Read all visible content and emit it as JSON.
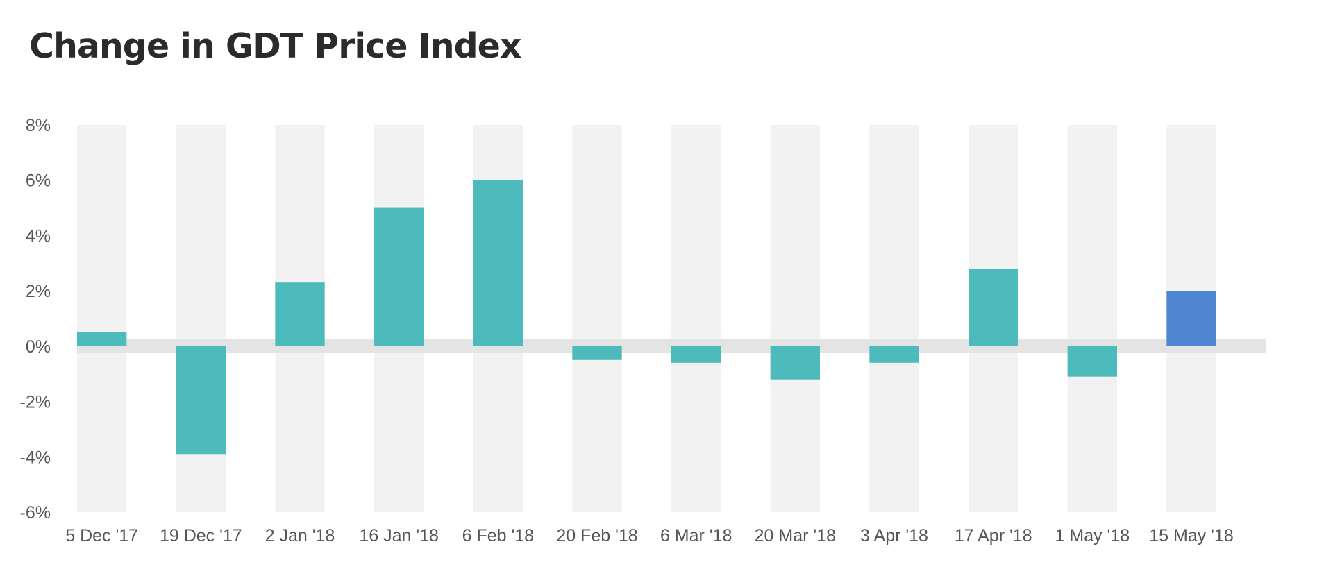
{
  "chart_data": {
    "type": "bar",
    "title": "Change in GDT Price Index",
    "xlabel": "",
    "ylabel": "",
    "categories": [
      "5 Dec '17",
      "19 Dec '17",
      "2 Jan '18",
      "16 Jan '18",
      "6 Feb '18",
      "20 Feb '18",
      "6 Mar '18",
      "20 Mar '18",
      "3 Apr '18",
      "17 Apr '18",
      "1 May '18",
      "15 May '18"
    ],
    "values": [
      0.5,
      -3.9,
      2.3,
      5.0,
      6.0,
      -0.5,
      -0.6,
      -1.2,
      -0.6,
      2.8,
      -1.1,
      2.0
    ],
    "ylim": [
      -6,
      8
    ],
    "yticks": [
      "8%",
      "6%",
      "4%",
      "2%",
      "0%",
      "-2%",
      "-4%",
      "-6%"
    ],
    "ytick_values": [
      8,
      6,
      4,
      2,
      0,
      -2,
      -4,
      -6
    ],
    "grid": false,
    "legend": "none",
    "colors": {
      "bar": "#4dbbbb",
      "highlight_bar": "#4f86d2",
      "band": "#f2f2f2",
      "zero_line": "#e4e4e4",
      "title": "#2b2b2b",
      "tick_text": "#555555"
    },
    "highlight_index": 11
  }
}
